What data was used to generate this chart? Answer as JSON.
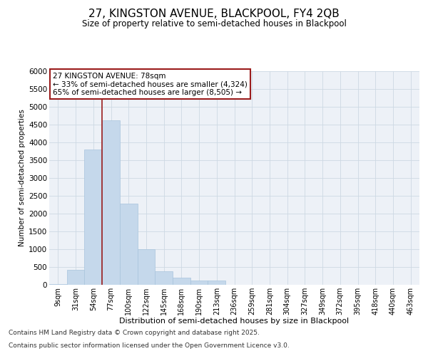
{
  "title_line1": "27, KINGSTON AVENUE, BLACKPOOL, FY4 2QB",
  "title_line2": "Size of property relative to semi-detached houses in Blackpool",
  "xlabel": "Distribution of semi-detached houses by size in Blackpool",
  "ylabel": "Number of semi-detached properties",
  "categories": [
    "9sqm",
    "31sqm",
    "54sqm",
    "77sqm",
    "100sqm",
    "122sqm",
    "145sqm",
    "168sqm",
    "190sqm",
    "213sqm",
    "236sqm",
    "259sqm",
    "281sqm",
    "304sqm",
    "327sqm",
    "349sqm",
    "372sqm",
    "395sqm",
    "418sqm",
    "440sqm",
    "463sqm"
  ],
  "values": [
    20,
    430,
    3800,
    4620,
    2280,
    1000,
    390,
    200,
    130,
    130,
    0,
    0,
    0,
    0,
    0,
    0,
    0,
    0,
    0,
    0,
    0
  ],
  "bar_color": "#c5d8eb",
  "bar_edgecolor": "#a8c4dc",
  "vline_color": "#9b1c1c",
  "vline_xindex": 3,
  "ylim": [
    0,
    6000
  ],
  "yticks": [
    0,
    500,
    1000,
    1500,
    2000,
    2500,
    3000,
    3500,
    4000,
    4500,
    5000,
    5500,
    6000
  ],
  "annotation_title": "27 KINGSTON AVENUE: 78sqm",
  "annotation_line1": "← 33% of semi-detached houses are smaller (4,324)",
  "annotation_line2": "65% of semi-detached houses are larger (8,505) →",
  "annotation_box_edgecolor": "#9b1c1c",
  "footnote_line1": "Contains HM Land Registry data © Crown copyright and database right 2025.",
  "footnote_line2": "Contains public sector information licensed under the Open Government Licence v3.0.",
  "grid_color": "#cdd8e3",
  "bg_color": "#edf1f7"
}
